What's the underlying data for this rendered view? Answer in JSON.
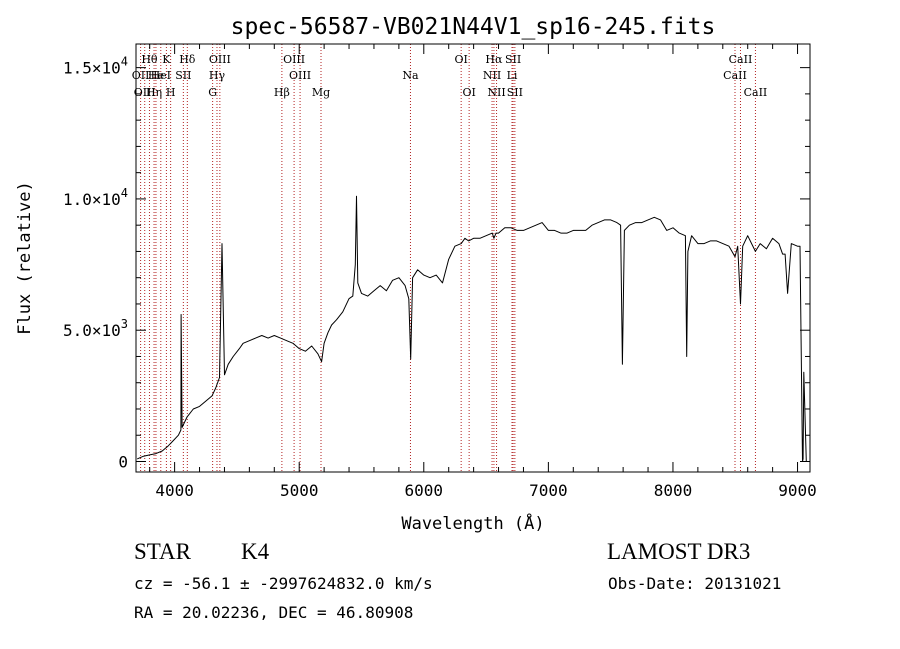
{
  "chart_data": {
    "type": "line",
    "title": "spec-56587-VB021N44V1_sp16-245.fits",
    "xlabel": "Wavelength (Å)",
    "ylabel": "Flux (relative)",
    "xlim": [
      3690,
      9100
    ],
    "ylim": [
      -400,
      15900
    ],
    "grid": false,
    "x_ticks": [
      {
        "value": 4000,
        "label": "4000"
      },
      {
        "value": 5000,
        "label": "5000"
      },
      {
        "value": 6000,
        "label": "6000"
      },
      {
        "value": 7000,
        "label": "7000"
      },
      {
        "value": 8000,
        "label": "8000"
      },
      {
        "value": 9000,
        "label": "9000"
      }
    ],
    "y_ticks": [
      {
        "value": 0,
        "mantissa": "0",
        "exponent": ""
      },
      {
        "value": 5000,
        "mantissa": "5.0×10",
        "exponent": "3"
      },
      {
        "value": 10000,
        "mantissa": "1.0×10",
        "exponent": "4"
      },
      {
        "value": 15000,
        "mantissa": "1.5×10",
        "exponent": "4"
      }
    ],
    "series": [
      {
        "color": "#000000",
        "x": [
          3700,
          3750,
          3800,
          3850,
          3900,
          3950,
          3990,
          4030,
          4050,
          4052,
          4060,
          4080,
          4100,
          4150,
          4200,
          4250,
          4300,
          4330,
          4360,
          4380,
          4400,
          4430,
          4470,
          4520,
          4550,
          4600,
          4650,
          4700,
          4750,
          4800,
          4850,
          4900,
          4950,
          5000,
          5050,
          5100,
          5150,
          5180,
          5200,
          5230,
          5260,
          5300,
          5350,
          5400,
          5430,
          5450,
          5460,
          5470,
          5500,
          5550,
          5600,
          5650,
          5700,
          5750,
          5800,
          5850,
          5880,
          5895,
          5910,
          5950,
          6000,
          6050,
          6100,
          6150,
          6200,
          6250,
          6300,
          6330,
          6360,
          6400,
          6450,
          6500,
          6550,
          6563,
          6580,
          6600,
          6650,
          6700,
          6750,
          6800,
          6850,
          6900,
          6950,
          7000,
          7050,
          7100,
          7150,
          7200,
          7250,
          7300,
          7350,
          7400,
          7450,
          7500,
          7550,
          7580,
          7594,
          7610,
          7650,
          7700,
          7750,
          7800,
          7850,
          7900,
          7950,
          8000,
          8050,
          8100,
          8110,
          8120,
          8150,
          8200,
          8250,
          8300,
          8350,
          8400,
          8450,
          8498,
          8520,
          8542,
          8560,
          8600,
          8662,
          8700,
          8750,
          8800,
          8850,
          8880,
          8900,
          8920,
          8950,
          9000,
          9020,
          9040,
          9045,
          9050,
          9070
        ],
        "y": [
          100,
          200,
          250,
          300,
          400,
          600,
          800,
          1000,
          1200,
          5600,
          1300,
          1500,
          1700,
          2000,
          2100,
          2300,
          2500,
          2800,
          3200,
          8300,
          3300,
          3700,
          4000,
          4300,
          4500,
          4600,
          4700,
          4800,
          4700,
          4800,
          4700,
          4600,
          4500,
          4300,
          4200,
          4400,
          4100,
          3800,
          4500,
          4900,
          5200,
          5400,
          5700,
          6200,
          6300,
          7500,
          10100,
          6800,
          6400,
          6300,
          6500,
          6700,
          6500,
          6900,
          7000,
          6700,
          6200,
          3900,
          7000,
          7300,
          7100,
          7000,
          7100,
          6800,
          7700,
          8200,
          8300,
          8500,
          8400,
          8500,
          8500,
          8600,
          8700,
          8500,
          8700,
          8700,
          8900,
          8900,
          8800,
          8800,
          8900,
          9000,
          9100,
          8800,
          8800,
          8700,
          8700,
          8800,
          8800,
          8800,
          9000,
          9100,
          9200,
          9200,
          9100,
          9000,
          3700,
          8800,
          9000,
          9100,
          9100,
          9200,
          9300,
          9200,
          8800,
          8900,
          8700,
          8600,
          4000,
          8000,
          8600,
          8300,
          8300,
          8400,
          8400,
          8300,
          8200,
          7800,
          8200,
          6000,
          8200,
          8600,
          8000,
          8300,
          8100,
          8500,
          8300,
          7900,
          7900,
          6400,
          8300,
          8200,
          8200,
          0,
          100,
          3400,
          0
        ]
      }
    ],
    "line_labels": [
      {
        "name": "Hθ",
        "label": "Hθ",
        "x": 3798,
        "row": 1
      },
      {
        "name": "OII",
        "label": "OII",
        "x": 3727,
        "row": 2
      },
      {
        "name": "OIII",
        "label": "OIII",
        "x": 3760,
        "row": 3
      },
      {
        "name": "He",
        "label": "He",
        "x": 3850,
        "row": 2
      },
      {
        "name": "Hη",
        "label": "Hη",
        "x": 3835,
        "row": 3
      },
      {
        "name": "K",
        "label": "K",
        "x": 3934,
        "row": 1
      },
      {
        "name": "HeI",
        "label": "HeI",
        "x": 3889,
        "row": 2
      },
      {
        "name": "H",
        "label": "H",
        "x": 3968,
        "row": 3
      },
      {
        "name": "Hδ",
        "label": "Hδ",
        "x": 4102,
        "row": 1
      },
      {
        "name": "SII",
        "label": "SII",
        "x": 4070,
        "row": 2
      },
      {
        "name": "OIII-4363",
        "label": "OIII",
        "x": 4363,
        "row": 1
      },
      {
        "name": "Hγ",
        "label": "Hγ",
        "x": 4340,
        "row": 2
      },
      {
        "name": "G",
        "label": "G",
        "x": 4305,
        "row": 3
      },
      {
        "name": "OIII-4959",
        "label": "OIII",
        "x": 4959,
        "row": 1
      },
      {
        "name": "OIII-5007",
        "label": "OIII",
        "x": 5007,
        "row": 2
      },
      {
        "name": "Hβ",
        "label": "Hβ",
        "x": 4861,
        "row": 3
      },
      {
        "name": "Mg",
        "label": "Mg",
        "x": 5175,
        "row": 3
      },
      {
        "name": "Na",
        "label": "Na",
        "x": 5893,
        "row": 2
      },
      {
        "name": "OI-6300",
        "label": "OI",
        "x": 6300,
        "row": 1
      },
      {
        "name": "OI-6364",
        "label": "OI",
        "x": 6364,
        "row": 3
      },
      {
        "name": "Hα",
        "label": "Hα",
        "x": 6563,
        "row": 1
      },
      {
        "name": "NII-6548",
        "label": "NII",
        "x": 6548,
        "row": 2
      },
      {
        "name": "NII-6584",
        "label": "NII",
        "x": 6584,
        "row": 3
      },
      {
        "name": "SII-6717",
        "label": "SII",
        "x": 6717,
        "row": 1
      },
      {
        "name": "Li",
        "label": "Li",
        "x": 6708,
        "row": 2
      },
      {
        "name": "SII-6731",
        "label": "SII",
        "x": 6731,
        "row": 3
      },
      {
        "name": "CaII-8498",
        "label": "CaII",
        "x": 8498,
        "row": 2
      },
      {
        "name": "CaII-8542",
        "label": "CaII",
        "x": 8542,
        "row": 1
      },
      {
        "name": "CaII-8662",
        "label": "CaII",
        "x": 8662,
        "row": 3
      }
    ]
  },
  "info": {
    "object_class": "STAR",
    "subclass": "K4",
    "survey": "LAMOST DR3",
    "cz": "cz = -56.1 ± -2997624832.0 km/s",
    "obs_date": "Obs-Date: 20131021",
    "coords": "RA =  20.02236, DEC =  46.80908"
  },
  "colors": {
    "axes": "#000000",
    "spectrum": "#000000",
    "line_markers": "#b22222"
  }
}
